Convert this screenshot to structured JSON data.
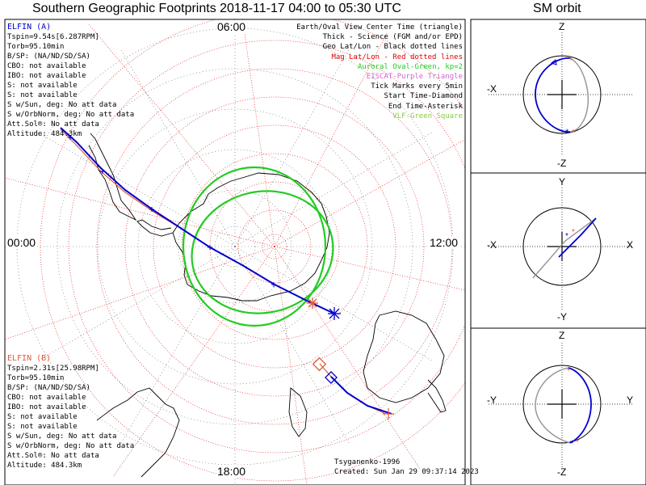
{
  "title": "Southern Geographic Footprints 2018-11-17 04:00 to 05:30 UTC",
  "orbit_title": "SM orbit",
  "elfin_a": {
    "name": "ELFIN (A)",
    "color": "#0000cc",
    "lines": [
      "Tspin=9.54s[6.287RPM]",
      "Torb=95.10min",
      "B/SP: (NA/ND/SD/SA)",
      "CBO: not available",
      "IBO: not available",
      "S: not available",
      "S: not available",
      "S w/Sun, deg: No att data",
      "S w/OrbNorm, deg: No att data",
      "Att.Sol®: No att data",
      "Altitude: 484.3km"
    ]
  },
  "elfin_b": {
    "name": "ELFIN (B)",
    "color": "#e05a3a",
    "lines": [
      "Tspin=2.31s[25.98RPM]",
      "Torb=95.10min",
      "B/SP: (NA/ND/SD/SA)",
      "CBO: not available",
      "IBO: not available",
      "S: not available",
      "S: not available",
      "S w/Sun, deg: No att data",
      "S w/OrbNorm, deg: No att data",
      "Att.Sol®: No att data",
      "Altitude: 484.3km"
    ]
  },
  "legend": [
    {
      "text": "Earth/Oval View Center Time (triangle)",
      "color": "#000000"
    },
    {
      "text": "Thick - Science (FGM and/or EPD)",
      "color": "#000000"
    },
    {
      "text": "Geo Lat/Lon - Black dotted lines",
      "color": "#000000"
    },
    {
      "text": "Mag Lat/Lon - Red dotted lines",
      "color": "#dd0000"
    },
    {
      "text": "Auroral Oval-Green, kp=2",
      "color": "#22cc22"
    },
    {
      "text": "EISCAT-Purple Triangle",
      "color": "#cc66cc"
    },
    {
      "text": "Tick Marks every 5min",
      "color": "#000000"
    },
    {
      "text": "Start Time-Diamond",
      "color": "#000000"
    },
    {
      "text": "End Time-Asterisk",
      "color": "#000000"
    },
    {
      "text": "VLF-Green Square",
      "color": "#88cc44"
    }
  ],
  "clock_labels": {
    "top": "06:00",
    "left": "00:00",
    "right": "12:00",
    "bottom": "18:00"
  },
  "footer": {
    "model": "Tsyganenko-1996",
    "created": "Created: Sun Jan 29 09:37:14 2023"
  },
  "orbit_panels": [
    {
      "up": "Z",
      "down": "-Z",
      "left": "-X",
      "right": ""
    },
    {
      "up": "Y",
      "down": "-Y",
      "left": "-X",
      "right": "X"
    },
    {
      "up": "Z",
      "down": "-Z",
      "left": "-Y",
      "right": "Y"
    }
  ],
  "colors": {
    "track_a": "#0000cc",
    "track_b": "#e05a3a",
    "grid_mag": "#dd0000",
    "oval": "#22cc22"
  }
}
